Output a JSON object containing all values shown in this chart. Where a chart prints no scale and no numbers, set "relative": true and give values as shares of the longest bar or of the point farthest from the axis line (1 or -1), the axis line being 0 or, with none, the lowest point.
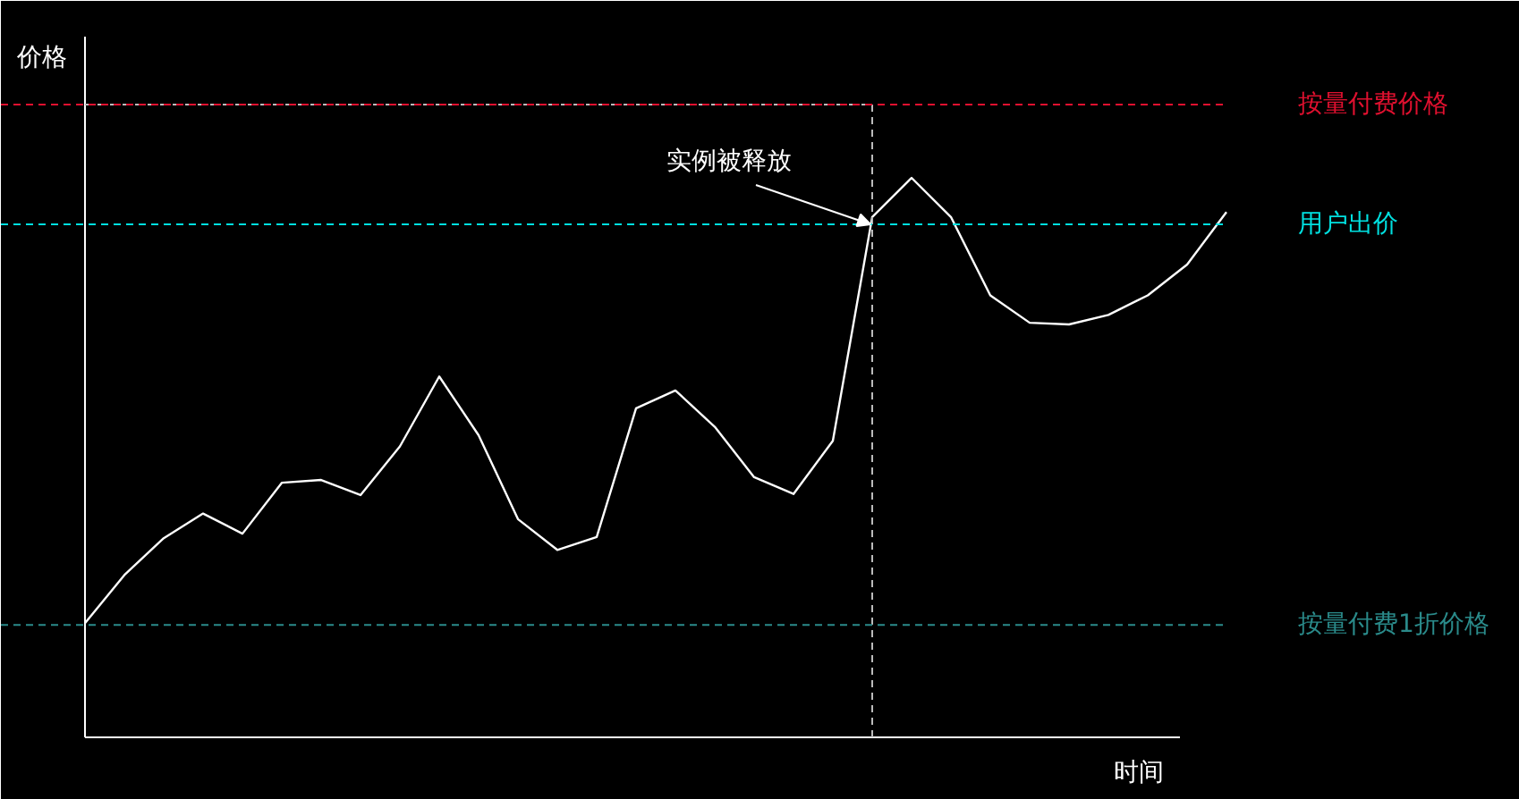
{
  "chart_data": {
    "type": "line",
    "relative": true,
    "xlabel": "时间",
    "ylabel": "价格",
    "line_style": "solid",
    "categories": [
      null,
      null,
      null,
      null,
      null,
      null,
      null,
      null,
      null,
      null,
      null,
      null,
      null,
      null,
      null,
      null,
      null,
      null,
      null,
      null,
      null,
      null,
      null,
      null,
      null,
      null,
      null,
      null,
      null,
      null
    ],
    "series": [
      {
        "color": "#ffffff",
        "values": [
          0.204,
          0.29,
          0.356,
          0.4,
          0.364,
          0.455,
          0.46,
          0.433,
          0.52,
          0.645,
          0.54,
          0.39,
          0.335,
          0.358,
          0.588,
          0.62,
          0.555,
          0.465,
          0.435,
          0.53,
          0.93,
          1,
          0.93,
          0.79,
          0.741,
          0.738,
          0.755,
          0.79,
          0.845,
          0.939
        ]
      }
    ],
    "ref_lines": [
      {
        "axis": "y",
        "value": 1.131,
        "label": "按量付费价格",
        "color": "#e0102f",
        "line_style": "dashed"
      },
      {
        "axis": "y",
        "value": 0.917,
        "label": "用户出价",
        "color": "#00e0e0",
        "line_style": "dashed"
      },
      {
        "axis": "y",
        "value": 0.201,
        "label": "按量付费1折价格",
        "color": "#2a8a8a",
        "line_style": "dashed"
      }
    ],
    "annotations": [
      "实例被释放"
    ]
  }
}
